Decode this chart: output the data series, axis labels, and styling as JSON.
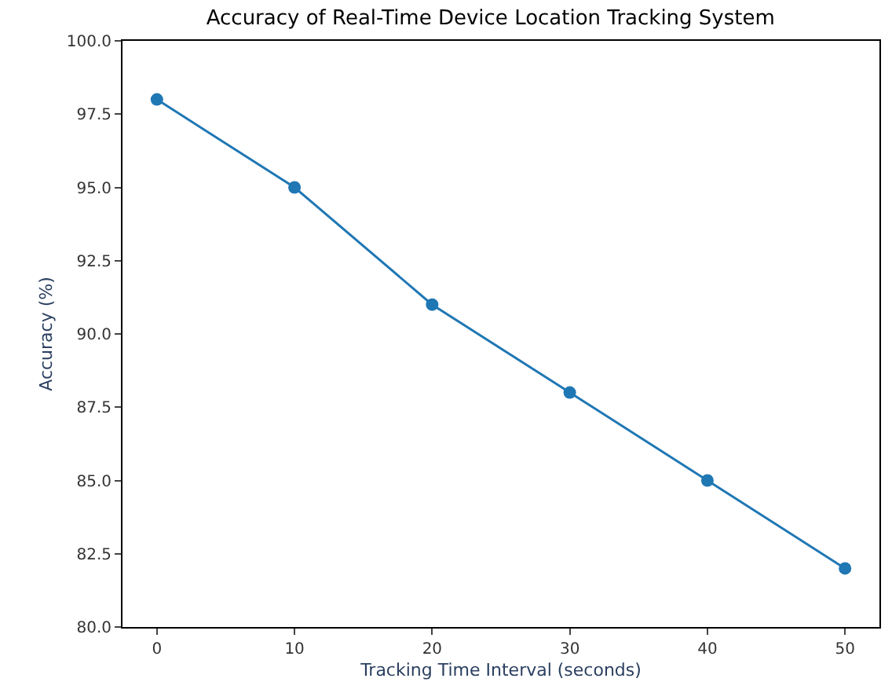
{
  "chart_data": {
    "type": "line",
    "title": "Accuracy of Real-Time Device Location Tracking System",
    "xlabel": "Tracking Time Interval (seconds)",
    "ylabel": "Accuracy (%)",
    "x": [
      0,
      10,
      20,
      30,
      40,
      50
    ],
    "series": [
      {
        "color": "#1f77b4",
        "values": [
          98,
          95,
          91,
          88,
          85,
          82
        ]
      }
    ],
    "xlim": [
      -2.5,
      52.5
    ],
    "xticks": [
      0,
      10,
      20,
      30,
      40,
      50
    ],
    "ylim": [
      80,
      100
    ],
    "yticks": [
      {
        "value": 80,
        "label": "80.0"
      },
      {
        "value": 82.5,
        "label": "82.5"
      },
      {
        "value": 85,
        "label": "85.0"
      },
      {
        "value": 87.5,
        "label": "87.5"
      },
      {
        "value": 90,
        "label": "90.0"
      },
      {
        "value": 92.5,
        "label": "92.5"
      },
      {
        "value": 95,
        "label": "95.0"
      },
      {
        "value": 97.5,
        "label": "97.5"
      },
      {
        "value": 100,
        "label": "100.0"
      }
    ],
    "marker": "circle",
    "line_style": "solid"
  }
}
